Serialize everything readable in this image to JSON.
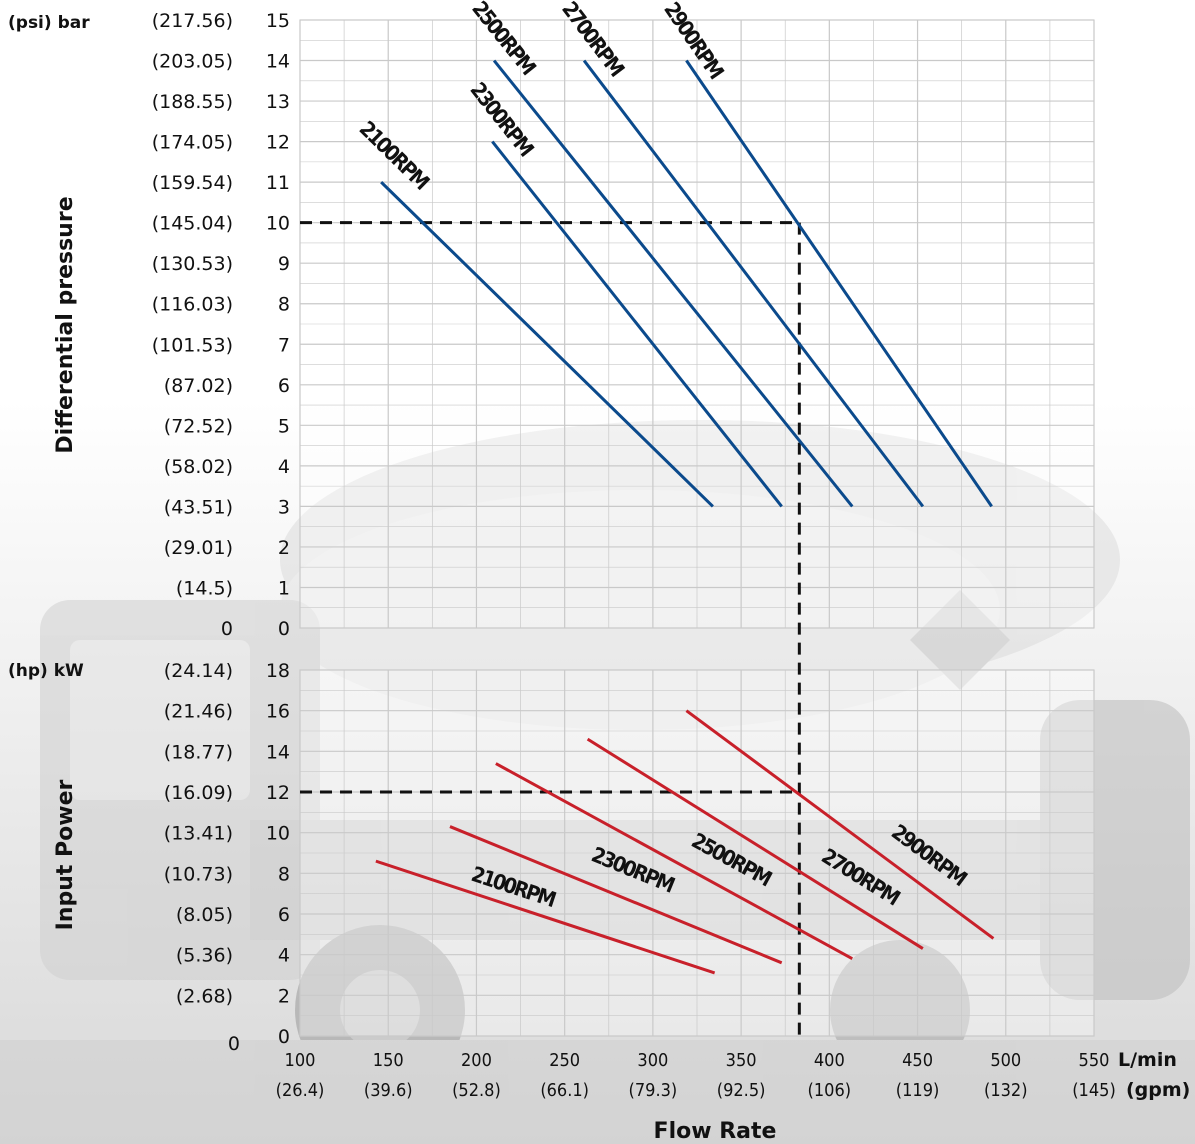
{
  "chart_data": [
    {
      "type": "line",
      "panel": "pressure",
      "ylabel": "Differential pressure",
      "units_label": "(psi) bar",
      "y_ticks": [
        "0",
        "1",
        "2",
        "3",
        "4",
        "5",
        "6",
        "7",
        "8",
        "9",
        "10",
        "11",
        "12",
        "13",
        "14",
        "15"
      ],
      "y_ticks_psi": [
        "(14.5)",
        "(29.01)",
        "(43.51)",
        "(58.02)",
        "(72.52)",
        "(87.02)",
        "(101.53)",
        "(116.03)",
        "(130.53)",
        "(145.04)",
        "(159.54)",
        "(174.05)",
        "(188.55)",
        "(203.05)",
        "(217.56)"
      ],
      "xlim": [
        100,
        550
      ],
      "ylim": [
        0,
        15
      ],
      "grid": true,
      "line_color": "#0b4a8c",
      "series": [
        {
          "name": "2100RPM",
          "points": [
            [
              146,
              11
            ],
            [
              334,
              3
            ]
          ]
        },
        {
          "name": "2300RPM",
          "points": [
            [
              209,
              12
            ],
            [
              373,
              3
            ]
          ]
        },
        {
          "name": "2500RPM",
          "points": [
            [
              210,
              14
            ],
            [
              413,
              3
            ]
          ]
        },
        {
          "name": "2700RPM",
          "points": [
            [
              261,
              14
            ],
            [
              453,
              3
            ]
          ]
        },
        {
          "name": "2900RPM",
          "points": [
            [
              319,
              14
            ],
            [
              492,
              3
            ]
          ]
        }
      ],
      "reference": {
        "x": 383,
        "y": 10
      }
    },
    {
      "type": "line",
      "panel": "power",
      "ylabel": "Input Power",
      "units_label": "(hp) kW",
      "y_ticks": [
        "0",
        "2",
        "4",
        "6",
        "8",
        "10",
        "12",
        "14",
        "16",
        "18"
      ],
      "y_ticks_hp": [
        "(2.68)",
        "(5.36)",
        "(8.05)",
        "(10.73)",
        "(13.41)",
        "(16.09)",
        "(18.77)",
        "(21.46)",
        "(24.14)"
      ],
      "xlim": [
        100,
        550
      ],
      "ylim": [
        0,
        18
      ],
      "grid": true,
      "line_color": "#c8202a",
      "series": [
        {
          "name": "2100RPM",
          "points": [
            [
              143,
              8.6
            ],
            [
              335,
              3.1
            ]
          ]
        },
        {
          "name": "2300RPM",
          "points": [
            [
              185,
              10.3
            ],
            [
              373,
              3.6
            ]
          ]
        },
        {
          "name": "2500RPM",
          "points": [
            [
              211,
              13.4
            ],
            [
              413,
              3.8
            ]
          ]
        },
        {
          "name": "2700RPM",
          "points": [
            [
              263,
              14.6
            ],
            [
              453,
              4.3
            ]
          ]
        },
        {
          "name": "2900RPM",
          "points": [
            [
              319,
              16.0
            ],
            [
              493,
              4.8
            ]
          ]
        }
      ],
      "reference": {
        "x": 383,
        "y": 12
      }
    }
  ],
  "x_axis": {
    "title": "Flow Rate",
    "ticks": [
      "100",
      "150",
      "200",
      "250",
      "300",
      "350",
      "400",
      "450",
      "500",
      "550"
    ],
    "ticks_gpm": [
      "(26.4)",
      "(39.6)",
      "(52.8)",
      "(66.1)",
      "(79.3)",
      "(92.5)",
      "(106)",
      "(119)",
      "(132)",
      "(145)"
    ],
    "unit_primary": "L/min",
    "unit_secondary": "(gpm)"
  },
  "colors": {
    "grid": "#c9c9c9",
    "reference": "#111111"
  }
}
